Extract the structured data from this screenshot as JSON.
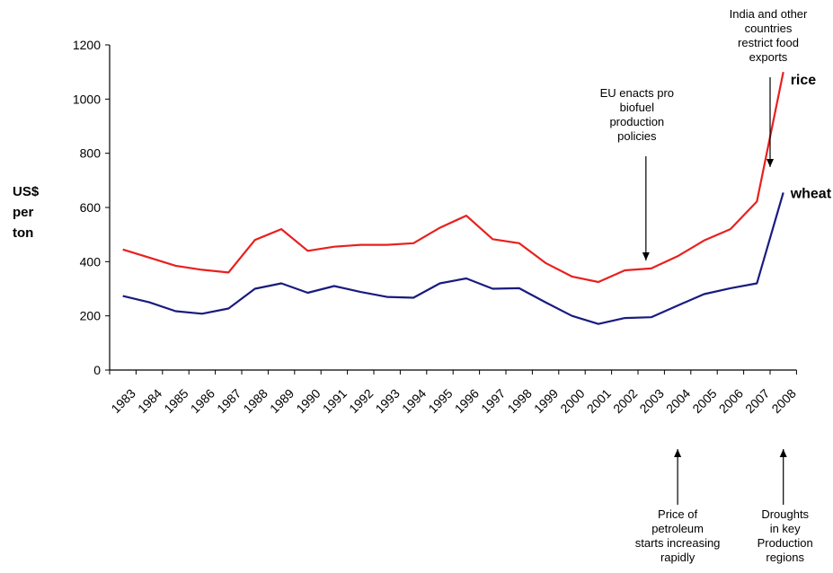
{
  "chart_data": {
    "type": "line",
    "ylabel": "US$ per ton",
    "ylabel_lines": [
      "US$",
      "per",
      "ton"
    ],
    "ylim": [
      0,
      1200
    ],
    "yticks": [
      0,
      200,
      400,
      600,
      800,
      1000,
      1200
    ],
    "grid": false,
    "x": [
      "1983",
      "1984",
      "1985",
      "1986",
      "1987",
      "1988",
      "1989",
      "1990",
      "1991",
      "1992",
      "1993",
      "1994",
      "1995",
      "1996",
      "1997",
      "1998",
      "1999",
      "2000",
      "2001",
      "2002",
      "2003",
      "2004",
      "2005",
      "2006",
      "2007",
      "2008"
    ],
    "series": [
      {
        "name": "rice",
        "color": "#e8201e",
        "values": [
          445,
          415,
          385,
          370,
          360,
          480,
          520,
          440,
          455,
          462,
          462,
          468,
          525,
          570,
          483,
          468,
          395,
          345,
          325,
          368,
          375,
          420,
          478,
          520,
          622,
          1100
        ]
      },
      {
        "name": "wheat",
        "color": "#1a1a80",
        "values": [
          273,
          250,
          217,
          208,
          227,
          300,
          320,
          285,
          310,
          288,
          270,
          267,
          320,
          338,
          300,
          302,
          250,
          200,
          170,
          192,
          195,
          238,
          280,
          302,
          320,
          655
        ]
      }
    ],
    "annotations": [
      {
        "id": "eu",
        "lines": [
          "EU enacts pro",
          "biofuel",
          "production",
          "policies"
        ],
        "x": "2002.8",
        "arrow": "down"
      },
      {
        "id": "india",
        "lines": [
          "India and other",
          "countries",
          "restrict food",
          "exports"
        ],
        "x": "2007.5",
        "arrow": "down"
      },
      {
        "id": "petroleum",
        "lines": [
          "Price of",
          "petroleum",
          "starts increasing",
          "rapidly"
        ],
        "x": "2004",
        "arrow": "up"
      },
      {
        "id": "droughts",
        "lines": [
          "Droughts",
          "in key",
          "Production",
          "regions"
        ],
        "x": "2008",
        "arrow": "up"
      }
    ]
  }
}
